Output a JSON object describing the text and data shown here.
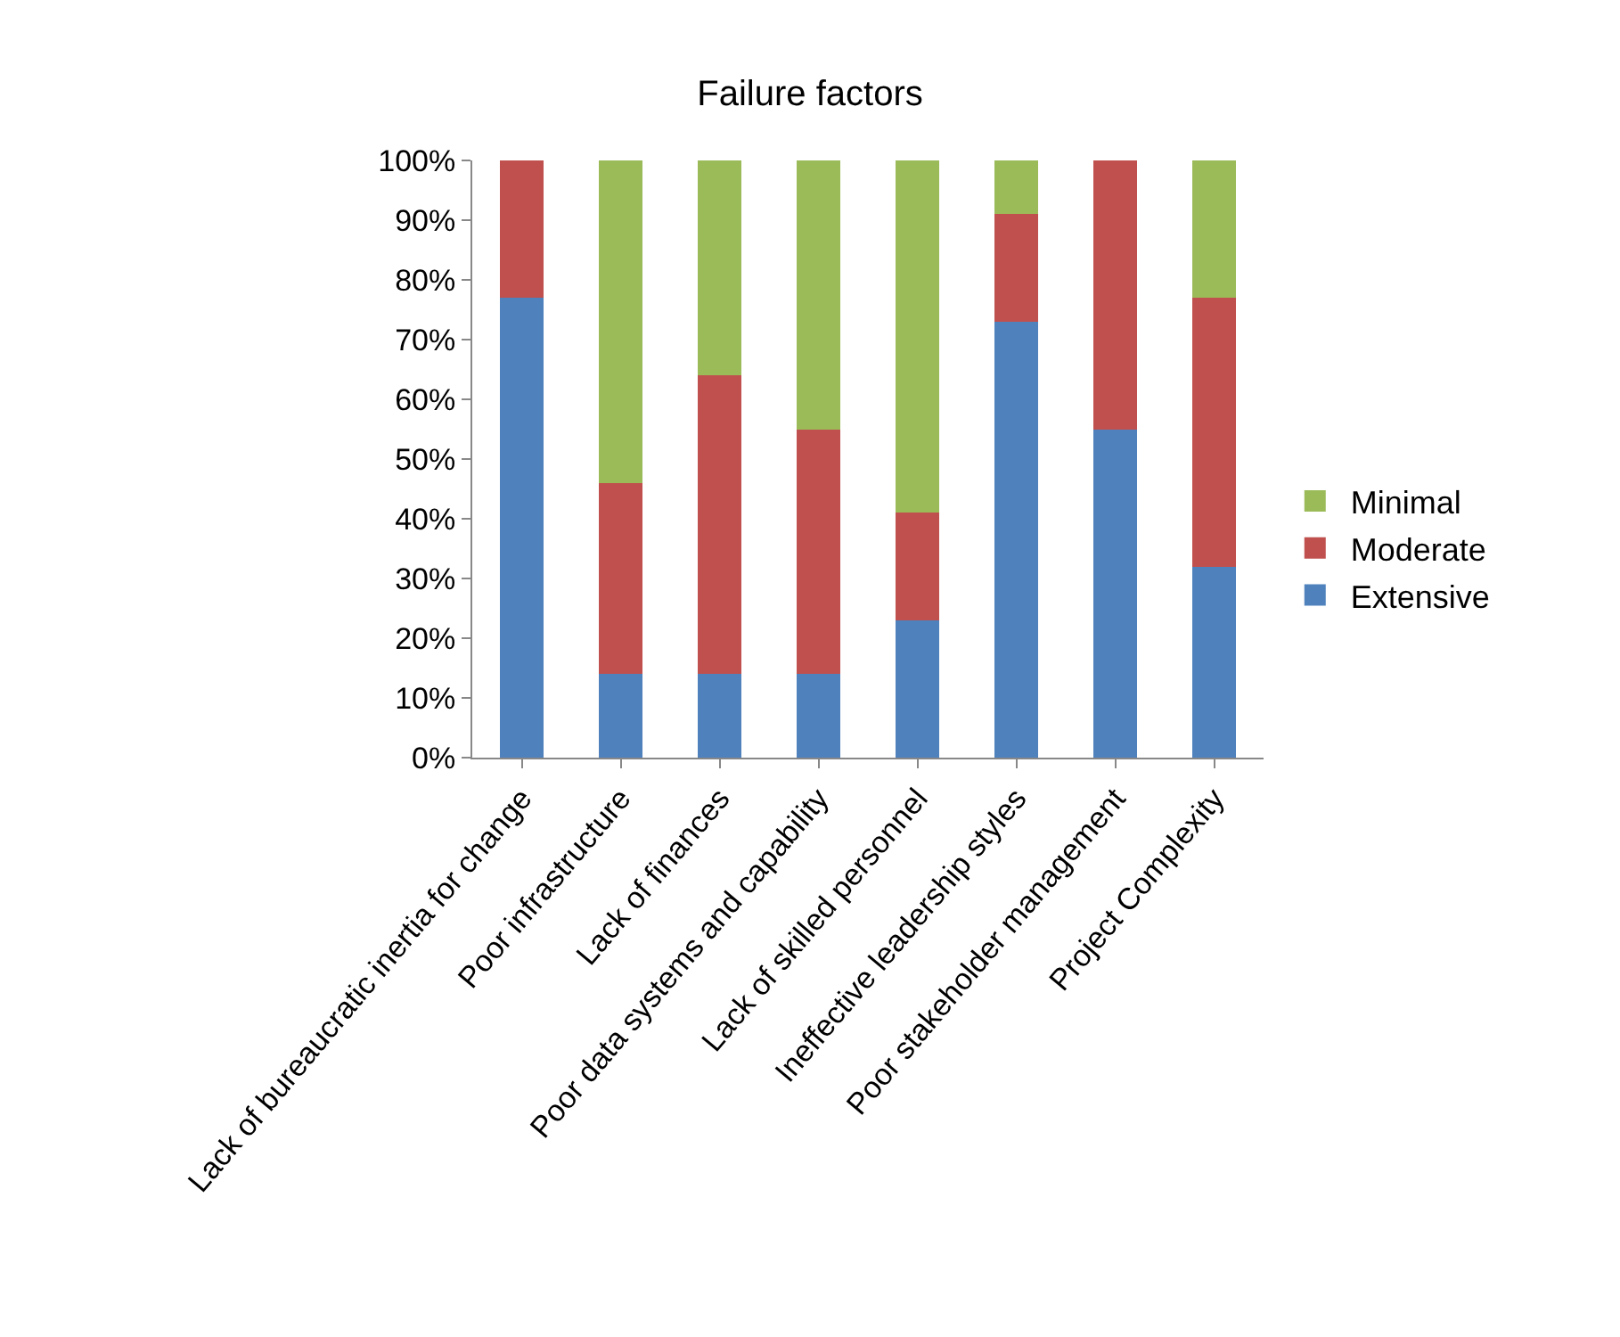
{
  "chart_data": {
    "type": "bar",
    "title": "Failure factors",
    "stacked": true,
    "categories": [
      "Lack of bureaucratic inertia for change",
      "Poor infrastructure",
      "Lack of finances",
      "Poor data systems and capability",
      "Lack of skilled personnel",
      "Ineffective leadership styles",
      "Poor stakeholder management",
      "Project Complexity"
    ],
    "series": [
      {
        "name": "Extensive",
        "color": "#4f81bd",
        "values": [
          77,
          14,
          14,
          14,
          23,
          73,
          55,
          32
        ]
      },
      {
        "name": "Moderate",
        "color": "#c0504d",
        "values": [
          23,
          32,
          50,
          41,
          18,
          18,
          45,
          45
        ]
      },
      {
        "name": "Minimal",
        "color": "#9bbb59",
        "values": [
          0,
          54,
          36,
          45,
          59,
          9,
          0,
          23
        ]
      }
    ],
    "ylim": [
      0,
      100
    ],
    "yticks": [
      {
        "value": 0,
        "label": "0%"
      },
      {
        "value": 10,
        "label": "10%"
      },
      {
        "value": 20,
        "label": "20%"
      },
      {
        "value": 30,
        "label": "30%"
      },
      {
        "value": 40,
        "label": "40%"
      },
      {
        "value": 50,
        "label": "50%"
      },
      {
        "value": 60,
        "label": "60%"
      },
      {
        "value": 70,
        "label": "70%"
      },
      {
        "value": 80,
        "label": "80%"
      },
      {
        "value": 90,
        "label": "90%"
      },
      {
        "value": 100,
        "label": "100%"
      }
    ],
    "grid": false,
    "legend": "right"
  }
}
